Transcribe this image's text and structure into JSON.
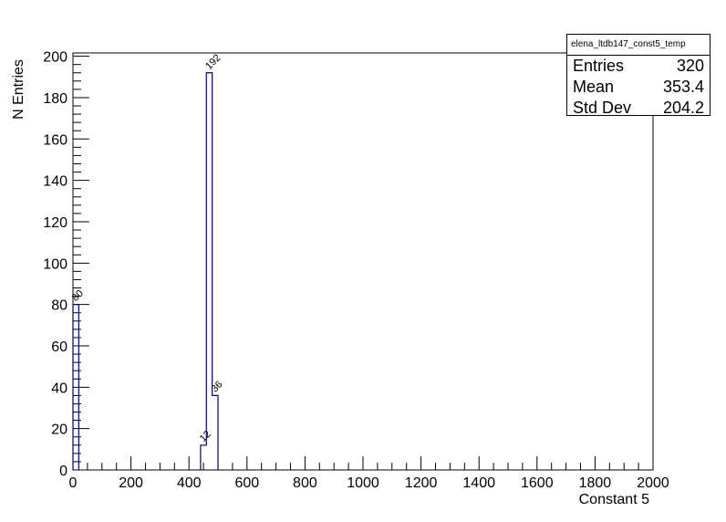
{
  "chart_data": {
    "type": "histogram",
    "title": "",
    "xlabel": "Constant 5",
    "ylabel": "N Entries",
    "xlim": [
      0,
      2000
    ],
    "ylim": [
      0,
      201.6
    ],
    "x_ticks": [
      0,
      200,
      400,
      600,
      800,
      1000,
      1200,
      1400,
      1600,
      1800,
      2000
    ],
    "y_ticks": [
      0,
      20,
      40,
      60,
      80,
      100,
      120,
      140,
      160,
      180,
      200
    ],
    "bins": [
      {
        "x0": 0,
        "x1": 20,
        "value": 80,
        "label": "80"
      },
      {
        "x0": 440,
        "x1": 460,
        "value": 12,
        "label": "12"
      },
      {
        "x0": 460,
        "x1": 480,
        "value": 192,
        "label": "192"
      },
      {
        "x0": 480,
        "x1": 500,
        "value": 36,
        "label": "36"
      }
    ],
    "line_color": "#000080",
    "grid": false,
    "legend": "none"
  },
  "stats": {
    "name": "elena_ltdb147_const5_temp",
    "rows": [
      {
        "label": "Entries",
        "value": "320"
      },
      {
        "label": "Mean",
        "value": "353.4"
      },
      {
        "label": "Std Dev",
        "value": "204.2"
      }
    ]
  }
}
